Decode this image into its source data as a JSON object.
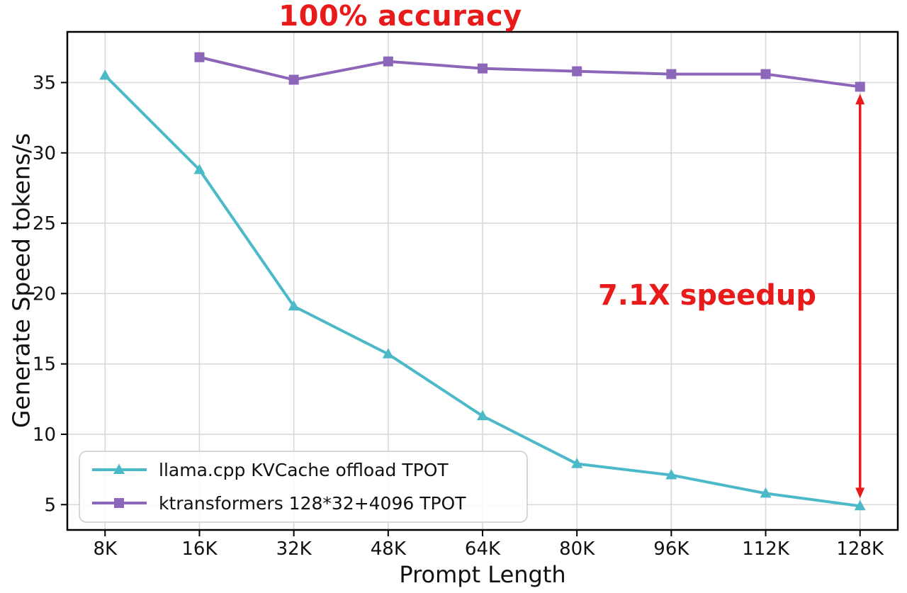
{
  "chart_data": {
    "type": "line",
    "title": "100% accuracy",
    "title_color": "#e81a1a",
    "xlabel": "Prompt Length",
    "ylabel": "Generate Speed tokens/s",
    "categories": [
      "8K",
      "16K",
      "32K",
      "48K",
      "64K",
      "80K",
      "96K",
      "112K",
      "128K"
    ],
    "yticks": [
      5,
      10,
      15,
      20,
      25,
      30,
      35
    ],
    "ylim": [
      3.2,
      38.6
    ],
    "grid": true,
    "legend_position": "lower left",
    "series": [
      {
        "name": "llama.cpp KVCache offload TPOT",
        "color": "#4cb9c8",
        "marker": "triangle",
        "values": [
          35.5,
          28.8,
          19.1,
          15.7,
          11.3,
          7.9,
          7.1,
          5.8,
          4.9
        ]
      },
      {
        "name": "ktransformers 128*32+4096 TPOT",
        "color": "#8c66b8",
        "marker": "square",
        "values": [
          null,
          36.8,
          35.2,
          36.5,
          36.0,
          35.8,
          35.6,
          35.6,
          34.7
        ]
      }
    ],
    "annotation": {
      "text": "7.1X speedup",
      "color": "#e81a1a",
      "arrow_x_category": "128K",
      "arrow_top_value": 34.2,
      "arrow_bottom_value": 5.45
    }
  }
}
